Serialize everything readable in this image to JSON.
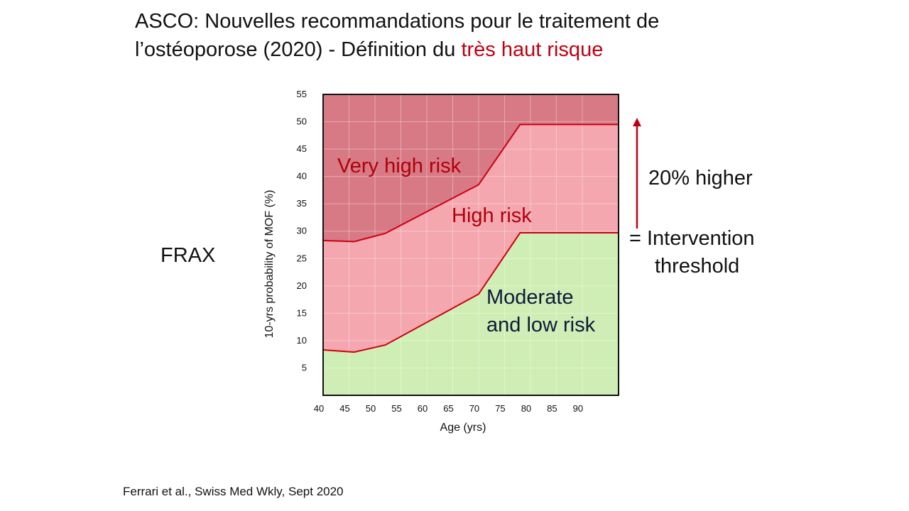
{
  "slide": {
    "title_line1": "ASCO: Nouvelles recommandations pour le traitement de",
    "title_line2_prefix": "l’ostéoporose (2020) - Définition du ",
    "title_line2_accent": "très haut risque",
    "frax_label": "FRAX",
    "citation": "Ferrari et al., Swiss Med Wkly, Sept 2020",
    "higher_label": "20% higher",
    "threshold_line1": "= Intervention",
    "threshold_line2": "threshold"
  },
  "chart_data": {
    "type": "area",
    "xlabel": "Age (yrs)",
    "ylabel": "10-yrs probability of MOF (%)",
    "xlim": [
      40,
      97
    ],
    "ylim": [
      0,
      55
    ],
    "x_ticks": [
      40,
      45,
      50,
      55,
      60,
      65,
      70,
      75,
      80,
      85,
      90
    ],
    "y_ticks": [
      5,
      10,
      15,
      20,
      25,
      30,
      35,
      40,
      45,
      50,
      55
    ],
    "grid": true,
    "x": [
      40,
      46,
      52,
      70,
      78,
      97
    ],
    "series": [
      {
        "name": "Moderate and low risk",
        "values": [
          8.3,
          7.9,
          9.2,
          18.5,
          29.7,
          29.7
        ],
        "color": "#cfeeb5"
      },
      {
        "name": "High risk",
        "values": [
          28.3,
          28.1,
          29.6,
          38.5,
          49.5,
          49.5
        ],
        "color": "#f5a7b0"
      },
      {
        "name": "Very high risk",
        "values": [
          55,
          55,
          55,
          55,
          55,
          55
        ],
        "color": "#d87a85"
      }
    ],
    "region_labels": {
      "very_high": "Very high risk",
      "high": "High risk",
      "moderate_line1": "Moderate",
      "moderate_line2": "and low risk"
    },
    "label_colors": {
      "very_high": "#b0000c",
      "high": "#b0000c",
      "moderate": "#0d1a3a"
    },
    "boundary_color": "#cc0010"
  }
}
